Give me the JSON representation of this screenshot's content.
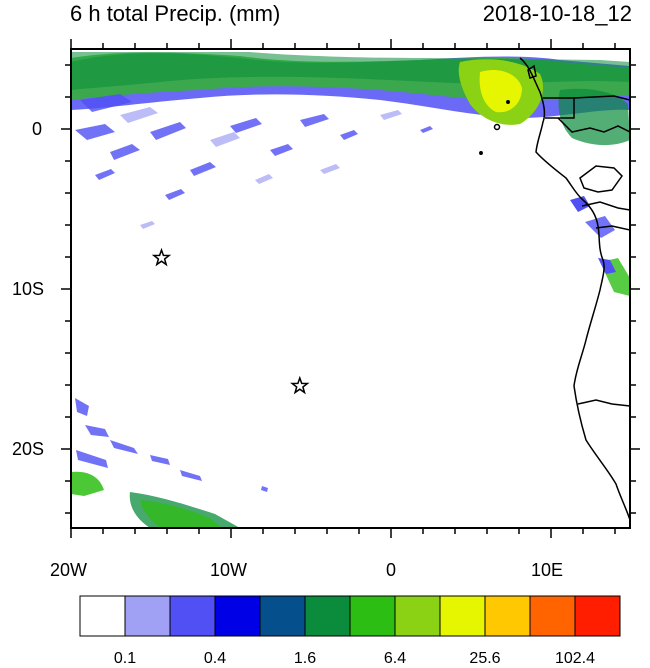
{
  "title_left": "6 h total Precip. (mm)",
  "title_right": "2018-10-18_12",
  "x_axis_labels": [
    "20W",
    "10W",
    "0",
    "10E"
  ],
  "y_axis_labels": [
    "0",
    "10S",
    "20S"
  ],
  "markers": [
    {
      "name": "star-marker",
      "lon": -14.3,
      "lat": -8.0
    },
    {
      "name": "star-marker",
      "lon": -5.7,
      "lat": -16.0
    }
  ],
  "colorbar": {
    "colors": [
      "#ffffff",
      "#a0a0f5",
      "#5050f5",
      "#0000e6",
      "#05508c",
      "#0a8c3c",
      "#2dbe14",
      "#8cd214",
      "#e6f500",
      "#ffc800",
      "#ff6400",
      "#ff1e00"
    ],
    "labels": [
      "0.1",
      "0.4",
      "1.6",
      "6.4",
      "25.6",
      "102.4"
    ]
  }
}
